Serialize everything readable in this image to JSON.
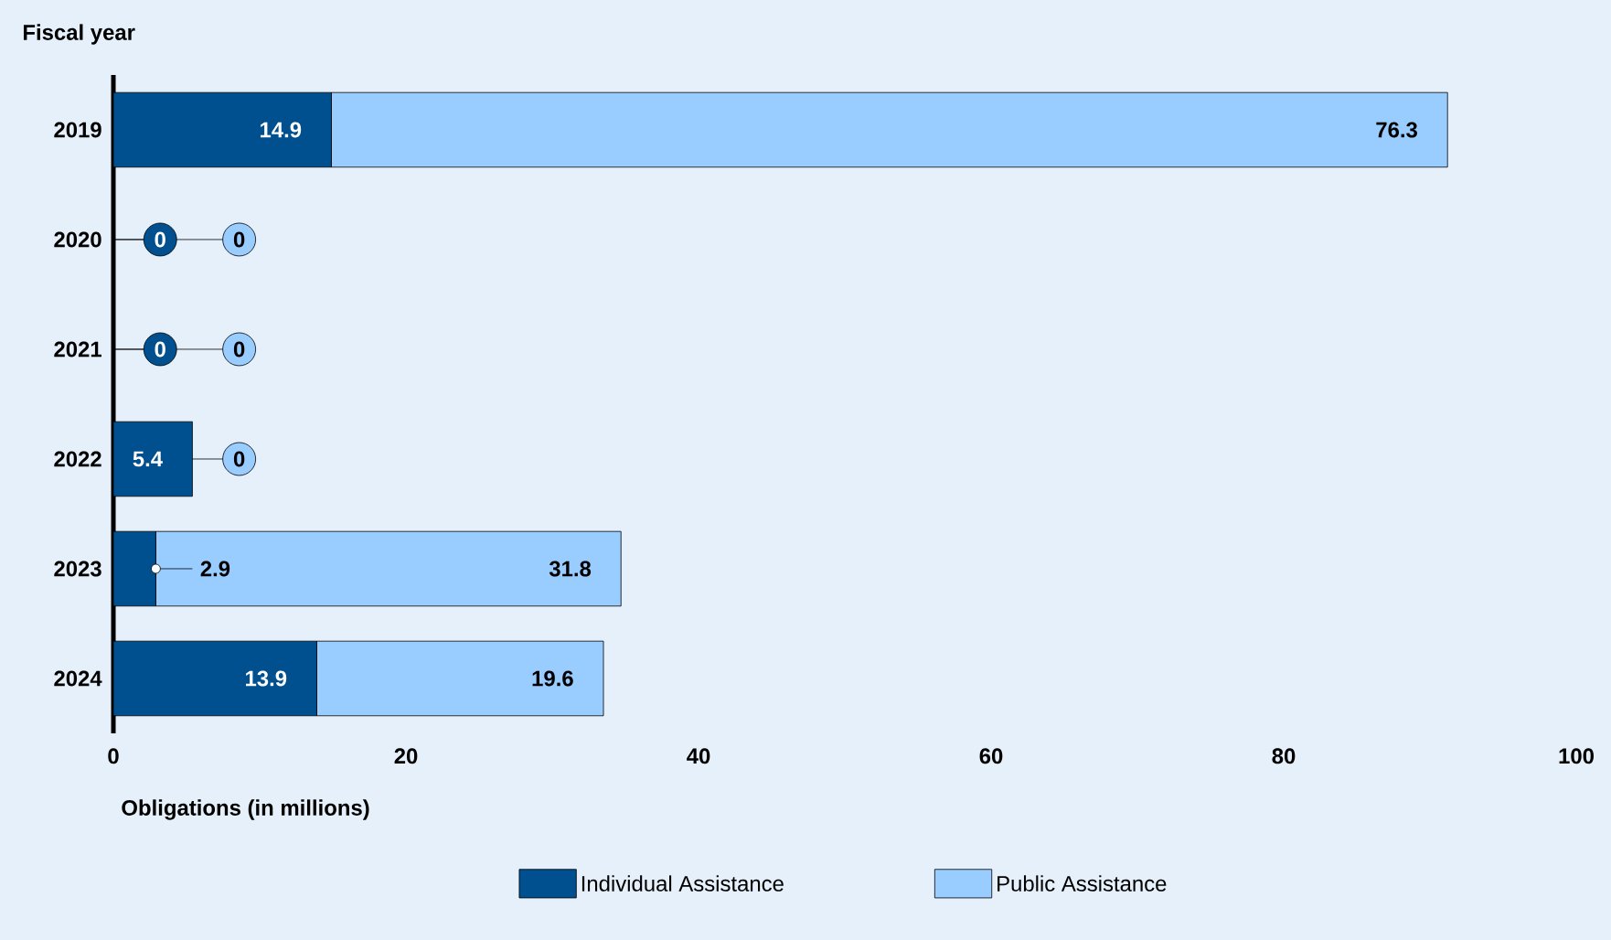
{
  "chart_data": {
    "type": "bar",
    "orientation": "horizontal",
    "stacked": true,
    "annotations": [
      "Fiscal year",
      {
        "text": "0",
        "x": 0,
        "y": "2020"
      },
      {
        "text": "0",
        "x": 0,
        "y": "2021"
      }
    ],
    "xlabel": "Obligations (in millions)",
    "categories": [
      "2019",
      "2020",
      "2021",
      "2022",
      "2023",
      "2024"
    ],
    "series": [
      {
        "name": "Individual Assistance",
        "color": "#00508f",
        "values": [
          14.9,
          0,
          0,
          5.4,
          2.9,
          13.9
        ],
        "value_labels": [
          "14.9",
          "0",
          "0",
          "5.4",
          "2.9",
          "13.9"
        ]
      },
      {
        "name": "Public Assistance",
        "color": "#99ccff",
        "values": [
          76.3,
          0,
          0,
          0,
          31.8,
          19.6
        ],
        "value_labels": [
          "76.3",
          null,
          null,
          "0",
          "31.8",
          "19.6"
        ]
      }
    ],
    "xlim": [
      0,
      100
    ],
    "xticks": [
      0,
      20,
      40,
      60,
      80,
      100
    ],
    "legend": "bottom",
    "grid": false
  }
}
